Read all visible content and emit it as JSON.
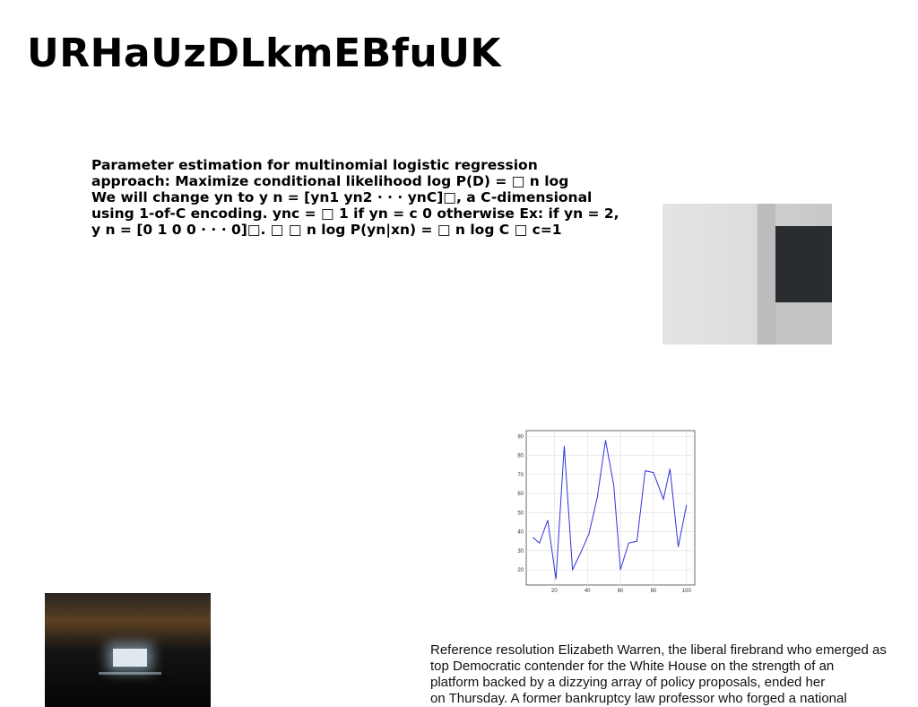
{
  "header": {
    "title": "URHaUzDLkmEBfuUK"
  },
  "math_text": {
    "lines": [
      "Parameter estimation for multinomial logistic regression",
      "approach: Maximize conditional likelihood log P(D) = □ n log",
      "We will change yn to y n = [yn1 yn2 · · · ynC]□, a C-dimensional",
      "using 1-of-C encoding. ync = □ 1 if yn = c 0 otherwise Ex: if yn = 2,",
      "y n = [0 1 0 0 · · · 0]□. □ □ n log P(yn|xn) = □ n log C □ c=1"
    ]
  },
  "paragraph": {
    "lines": [
      "Reference resolution Elizabeth Warren, the liberal firebrand who emerged as",
      "top Democratic contender for the White House on the strength of an",
      "platform backed by a dizzying array of policy proposals, ended her",
      "on Thursday. A former bankruptcy law professor who forged a national"
    ]
  },
  "chart_data": {
    "type": "line",
    "x": [
      7,
      11,
      16,
      21,
      26,
      31,
      36,
      41,
      46,
      51,
      56,
      60,
      65,
      70,
      75,
      80,
      86,
      90,
      95,
      100
    ],
    "series": [
      {
        "color": "#3333dd",
        "values": [
          37,
          34,
          46,
          15,
          85,
          20,
          29,
          39,
          58,
          88,
          64,
          20,
          34,
          35,
          72,
          71,
          57,
          73,
          32,
          54
        ]
      }
    ],
    "xlim": [
      3,
      105
    ],
    "ylim": [
      12,
      93
    ],
    "xticks": [
      20,
      40,
      60,
      80,
      100
    ],
    "yticks": [
      20,
      30,
      40,
      50,
      60,
      70,
      80,
      90
    ],
    "grid": true
  }
}
